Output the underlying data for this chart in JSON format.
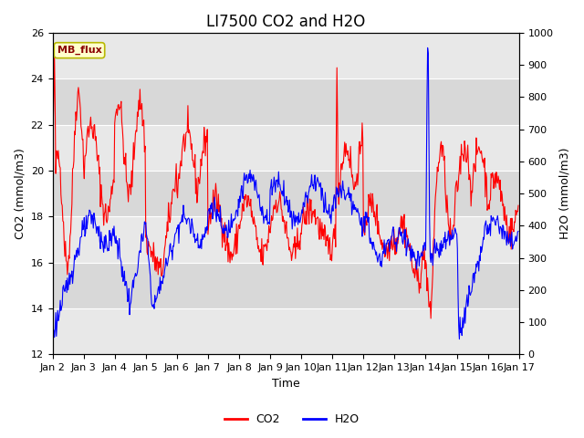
{
  "title": "LI7500 CO2 and H2O",
  "xlabel": "Time",
  "ylabel_left": "CO2 (mmol/m3)",
  "ylabel_right": "H2O (mmol/m3)",
  "ylim_left": [
    12,
    26
  ],
  "ylim_right": [
    0,
    1000
  ],
  "yticks_left": [
    12,
    14,
    16,
    18,
    20,
    22,
    24,
    26
  ],
  "yticks_right": [
    0,
    100,
    200,
    300,
    400,
    500,
    600,
    700,
    800,
    900,
    1000
  ],
  "band_colors": [
    "#e8e8e8",
    "#d8d8d8"
  ],
  "bg_color": "#ffffff",
  "plot_bg_color": "#e8e8e8",
  "co2_color": "red",
  "h2o_color": "blue",
  "annotation_text": "MB_flux",
  "annotation_bg": "#ffffcc",
  "annotation_border": "#b8b800",
  "legend_co2": "CO2",
  "legend_h2o": "H2O",
  "title_fontsize": 12,
  "axis_fontsize": 9,
  "tick_fontsize": 8
}
